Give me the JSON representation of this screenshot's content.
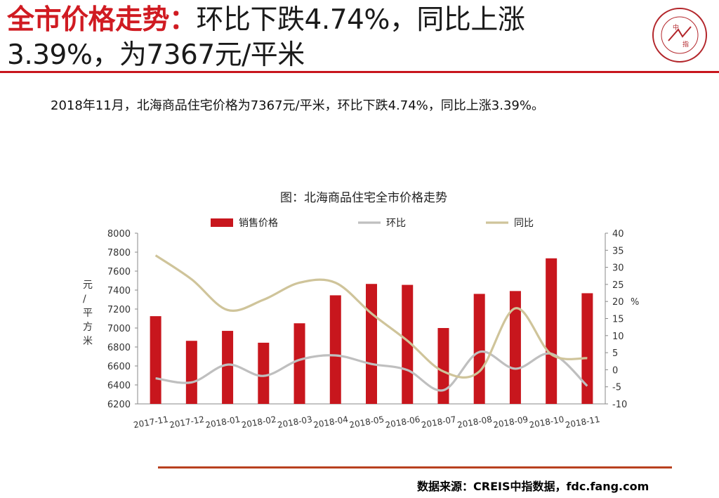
{
  "header": {
    "title_highlight": "全市价格走势：",
    "title_line1_rest": "环比下跌4.74%，同比上涨",
    "title_line2": "3.39%，为7367元/平米"
  },
  "logo": {
    "name": "china-index-academy-logo",
    "text_center_top": "中",
    "text_center_bottom": "指"
  },
  "summary": "2018年11月，北海商品住宅价格为7367元/平米，环比下跌4.74%，同比上涨3.39%。",
  "chart_data": {
    "type": "bar",
    "title": "图：北海商品住宅全市价格走势",
    "categories": [
      "2017-11",
      "2017-12",
      "2018-01",
      "2018-02",
      "2018-03",
      "2018-04",
      "2018-05",
      "2018-06",
      "2018-07",
      "2018-08",
      "2018-09",
      "2018-10",
      "2018-11"
    ],
    "series": [
      {
        "name": "销售价格",
        "type": "bar",
        "axis": "left",
        "color": "#c8161d",
        "values": [
          7125,
          6865,
          6970,
          6845,
          7050,
          7345,
          7465,
          7455,
          7000,
          7360,
          7390,
          7735,
          7367
        ]
      },
      {
        "name": "环比",
        "type": "line",
        "axis": "right",
        "color": "#bfbfbf",
        "values": [
          -2.5,
          -3.7,
          1.5,
          -1.8,
          2.9,
          4.2,
          1.7,
          -0.1,
          -6.0,
          5.2,
          0.3,
          4.7,
          -4.74
        ]
      },
      {
        "name": "同比",
        "type": "line",
        "axis": "right",
        "color": "#cfc49a",
        "values": [
          33.5,
          26.5,
          17.5,
          20.5,
          25.5,
          25.5,
          16.5,
          8.5,
          -0.5,
          -0.5,
          18.0,
          4.5,
          3.39
        ]
      }
    ],
    "ylabel_left": "元/平方米",
    "ylim_left": [
      6200,
      8000
    ],
    "yticks_left": [
      6200,
      6400,
      6600,
      6800,
      7000,
      7200,
      7400,
      7600,
      7800,
      8000
    ],
    "ylabel_right": "%",
    "ylim_right": [
      -10,
      40
    ],
    "yticks_right": [
      -10,
      -5,
      0,
      5,
      10,
      15,
      20,
      25,
      30,
      35,
      40
    ],
    "grid": false,
    "legend": "top"
  },
  "source": "数据来源：CREIS中指数据，fdc.fang.com"
}
